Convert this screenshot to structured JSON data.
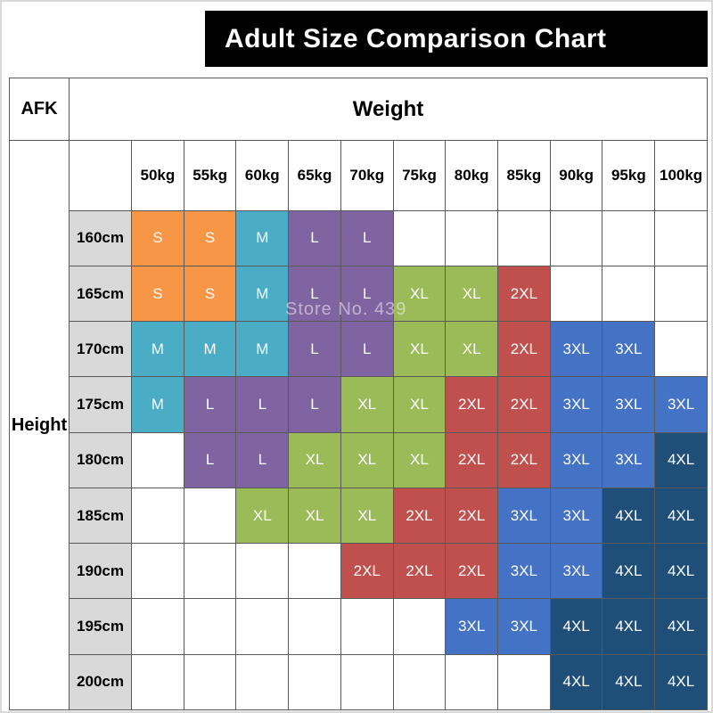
{
  "labels": {
    "corner": "AFK",
    "weight": "Weight",
    "height": "Height",
    "watermark": "Store No. 439"
  },
  "chart_data": {
    "type": "table",
    "title": "Adult Size Comparison Chart",
    "x_axis_label": "Weight",
    "y_axis_label": "Height",
    "columns": [
      "50kg",
      "55kg",
      "60kg",
      "65kg",
      "70kg",
      "75kg",
      "80kg",
      "85kg",
      "90kg",
      "95kg",
      "100kg"
    ],
    "rows": [
      {
        "height": "160cm",
        "sizes": [
          "S",
          "S",
          "M",
          "L",
          "L",
          "",
          "",
          "",
          "",
          "",
          ""
        ]
      },
      {
        "height": "165cm",
        "sizes": [
          "S",
          "S",
          "M",
          "L",
          "L",
          "XL",
          "XL",
          "2XL",
          "",
          "",
          ""
        ]
      },
      {
        "height": "170cm",
        "sizes": [
          "M",
          "M",
          "M",
          "L",
          "L",
          "XL",
          "XL",
          "2XL",
          "3XL",
          "3XL",
          ""
        ]
      },
      {
        "height": "175cm",
        "sizes": [
          "M",
          "L",
          "L",
          "L",
          "XL",
          "XL",
          "2XL",
          "2XL",
          "3XL",
          "3XL",
          "3XL"
        ]
      },
      {
        "height": "180cm",
        "sizes": [
          "",
          "L",
          "L",
          "XL",
          "XL",
          "XL",
          "2XL",
          "2XL",
          "3XL",
          "3XL",
          "4XL"
        ]
      },
      {
        "height": "185cm",
        "sizes": [
          "",
          "",
          "XL",
          "XL",
          "XL",
          "2XL",
          "2XL",
          "3XL",
          "3XL",
          "4XL",
          "4XL"
        ]
      },
      {
        "height": "190cm",
        "sizes": [
          "",
          "",
          "",
          "",
          "2XL",
          "2XL",
          "2XL",
          "3XL",
          "3XL",
          "4XL",
          "4XL"
        ]
      },
      {
        "height": "195cm",
        "sizes": [
          "",
          "",
          "",
          "",
          "",
          "",
          "3XL",
          "3XL",
          "4XL",
          "4XL",
          "4XL"
        ]
      },
      {
        "height": "200cm",
        "sizes": [
          "",
          "",
          "",
          "",
          "",
          "",
          "",
          "",
          "4XL",
          "4XL",
          "4XL"
        ]
      }
    ],
    "size_colors": {
      "S": "#F79646",
      "M": "#4BACC6",
      "L": "#8064A2",
      "XL": "#9BBB59",
      "2XL": "#C0504D",
      "3XL": "#4472C4",
      "4XL": "#1F4E79"
    }
  }
}
